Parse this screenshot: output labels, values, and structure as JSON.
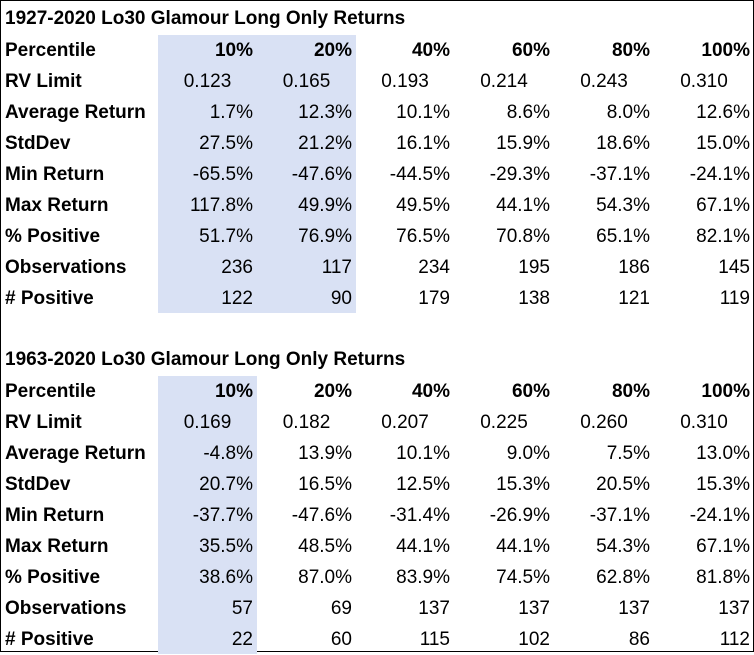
{
  "tables": [
    {
      "title": "1927-2020 Lo30 Glamour Long Only Returns",
      "header_label": "Percentile",
      "columns": [
        "10%",
        "20%",
        "40%",
        "60%",
        "80%",
        "100%"
      ],
      "highlight_columns": [
        "10%",
        "20%"
      ],
      "rows": [
        {
          "label": "RV Limit",
          "values": [
            "0.123",
            "0.165",
            "0.193",
            "0.214",
            "0.243",
            "0.310"
          ]
        },
        {
          "label": "Average Return",
          "values": [
            "1.7%",
            "12.3%",
            "10.1%",
            "8.6%",
            "8.0%",
            "12.6%"
          ]
        },
        {
          "label": "StdDev",
          "values": [
            "27.5%",
            "21.2%",
            "16.1%",
            "15.9%",
            "18.6%",
            "15.0%"
          ]
        },
        {
          "label": "Min Return",
          "values": [
            "-65.5%",
            "-47.6%",
            "-44.5%",
            "-29.3%",
            "-37.1%",
            "-24.1%"
          ]
        },
        {
          "label": "Max Return",
          "values": [
            "117.8%",
            "49.9%",
            "49.5%",
            "44.1%",
            "54.3%",
            "67.1%"
          ]
        },
        {
          "label": "% Positive",
          "values": [
            "51.7%",
            "76.9%",
            "76.5%",
            "70.8%",
            "65.1%",
            "82.1%"
          ]
        },
        {
          "label": "Observations",
          "values": [
            "236",
            "117",
            "234",
            "195",
            "186",
            "145"
          ]
        },
        {
          "label": "# Positive",
          "values": [
            "122",
            "90",
            "179",
            "138",
            "121",
            "119"
          ]
        }
      ]
    },
    {
      "title": "1963-2020 Lo30 Glamour Long Only Returns",
      "header_label": "Percentile",
      "columns": [
        "10%",
        "20%",
        "40%",
        "60%",
        "80%",
        "100%"
      ],
      "highlight_columns": [
        "10%"
      ],
      "rows": [
        {
          "label": "RV Limit",
          "values": [
            "0.169",
            "0.182",
            "0.207",
            "0.225",
            "0.260",
            "0.310"
          ]
        },
        {
          "label": "Average Return",
          "values": [
            "-4.8%",
            "13.9%",
            "10.1%",
            "9.0%",
            "7.5%",
            "13.0%"
          ]
        },
        {
          "label": "StdDev",
          "values": [
            "20.7%",
            "16.5%",
            "12.5%",
            "15.3%",
            "20.5%",
            "15.3%"
          ]
        },
        {
          "label": "Min Return",
          "values": [
            "-37.7%",
            "-47.6%",
            "-31.4%",
            "-26.9%",
            "-37.1%",
            "-24.1%"
          ]
        },
        {
          "label": "Max Return",
          "values": [
            "35.5%",
            "48.5%",
            "44.1%",
            "44.1%",
            "54.3%",
            "67.1%"
          ]
        },
        {
          "label": "% Positive",
          "values": [
            "38.6%",
            "87.0%",
            "83.9%",
            "74.5%",
            "62.8%",
            "81.8%"
          ]
        },
        {
          "label": "Observations",
          "values": [
            "57",
            "69",
            "137",
            "137",
            "137",
            "137"
          ]
        },
        {
          "label": "# Positive",
          "values": [
            "22",
            "60",
            "115",
            "102",
            "86",
            "112"
          ]
        }
      ]
    }
  ],
  "colors": {
    "highlight": "#d9e1f4",
    "text": "#000000",
    "background": "#ffffff"
  }
}
